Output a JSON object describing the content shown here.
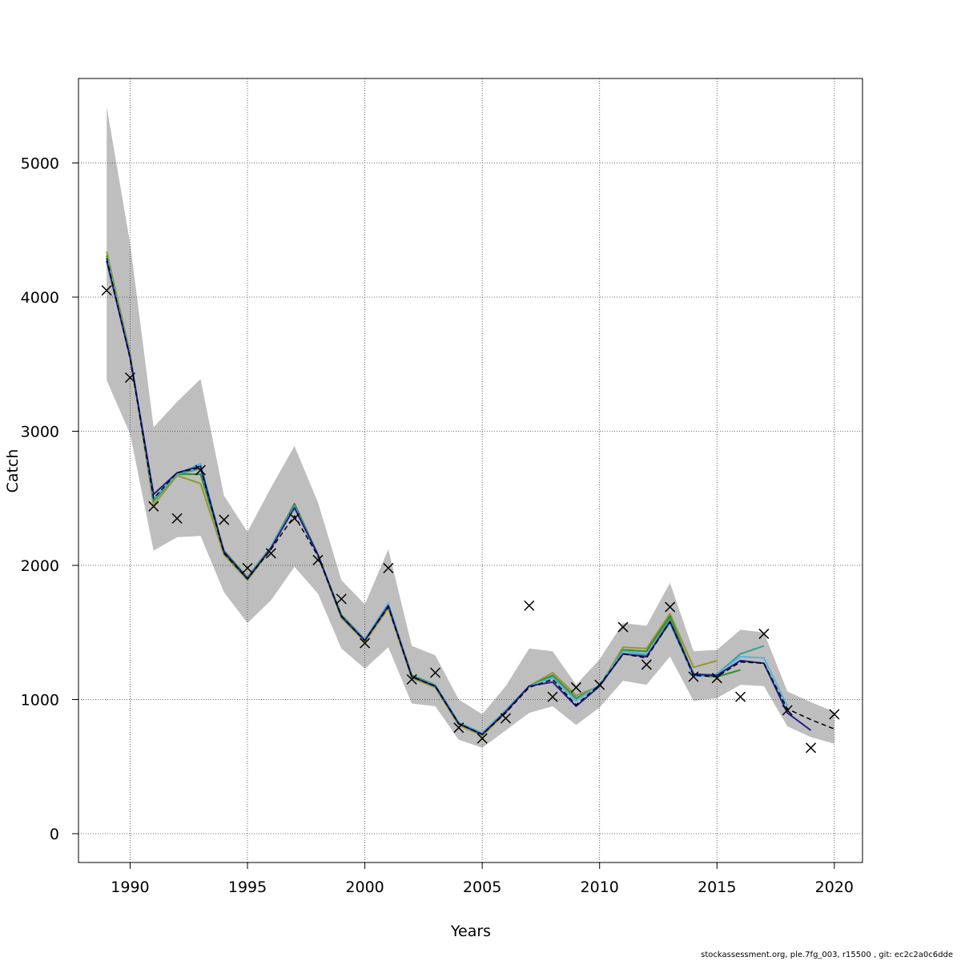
{
  "chart_data": {
    "type": "line",
    "title": "",
    "xlabel": "Years",
    "ylabel": "Catch",
    "xlim": [
      1987.8,
      2021.2
    ],
    "ylim": [
      -215,
      5630
    ],
    "x_ticks": [
      1990,
      1995,
      2000,
      2005,
      2010,
      2015,
      2020
    ],
    "y_ticks": [
      0,
      1000,
      2000,
      3000,
      4000,
      5000
    ],
    "grid": true,
    "legend": "none",
    "confidence_band": {
      "color": "#bebebe",
      "x": [
        1989,
        1990,
        1991,
        1992,
        1993,
        1994,
        1995,
        1996,
        1997,
        1998,
        1999,
        2000,
        2001,
        2002,
        2003,
        2004,
        2005,
        2006,
        2007,
        2008,
        2009,
        2010,
        2011,
        2012,
        2013,
        2014,
        2015,
        2016,
        2017,
        2018,
        2019,
        2020
      ],
      "upper": [
        5420,
        4400,
        3030,
        3220,
        3390,
        2520,
        2250,
        2580,
        2890,
        2470,
        1890,
        1710,
        2120,
        1400,
        1330,
        1000,
        890,
        1100,
        1380,
        1360,
        1110,
        1300,
        1570,
        1550,
        1870,
        1360,
        1370,
        1520,
        1500,
        1060,
        980,
        910
      ],
      "lower": [
        3380,
        2980,
        2110,
        2210,
        2220,
        1800,
        1570,
        1740,
        1990,
        1790,
        1380,
        1230,
        1390,
        970,
        950,
        700,
        640,
        770,
        900,
        950,
        810,
        940,
        1140,
        1110,
        1320,
        990,
        1010,
        1110,
        1100,
        800,
        720,
        670
      ]
    },
    "series": [
      {
        "color": "#000000",
        "dashed": true,
        "x": [
          1989,
          1990,
          1991,
          1992,
          1993,
          1994,
          1995,
          1996,
          1997,
          1998,
          1999,
          2000,
          2001,
          2002,
          2003,
          2004,
          2005,
          2006,
          2007,
          2008,
          2009,
          2010,
          2011,
          2012,
          2013,
          2014,
          2015,
          2016,
          2017,
          2018,
          2019,
          2020
        ],
        "values": [
          4290,
          3540,
          2500,
          2690,
          2730,
          2090,
          1900,
          2120,
          2370,
          2070,
          1620,
          1440,
          1690,
          1170,
          1100,
          820,
          740,
          900,
          1090,
          1150,
          960,
          1110,
          1340,
          1310,
          1580,
          1180,
          1170,
          1280,
          1270,
          930,
          850,
          780
        ]
      },
      {
        "color": "#1e1e8c",
        "x": [
          1989,
          1990,
          1991,
          1992,
          1993,
          1994,
          1995,
          1996,
          1997,
          1998,
          1999,
          2000,
          2001,
          2002,
          2003,
          2004,
          2005,
          2006,
          2007,
          2008,
          2009,
          2010,
          2011,
          2012,
          2013,
          2014,
          2015,
          2016,
          2017,
          2018,
          2019
        ],
        "values": [
          4270,
          3550,
          2530,
          2690,
          2740,
          2100,
          1900,
          2130,
          2430,
          2080,
          1620,
          1440,
          1700,
          1170,
          1100,
          820,
          740,
          910,
          1100,
          1130,
          950,
          1100,
          1340,
          1320,
          1580,
          1190,
          1180,
          1290,
          1270,
          900,
          770
        ]
      },
      {
        "color": "#5ab4dc",
        "x": [
          1989,
          1990,
          1991,
          1992,
          1993,
          1994,
          1995,
          1996,
          1997,
          1998,
          1999,
          2000,
          2001,
          2002,
          2003,
          2004,
          2005,
          2006,
          2007,
          2008,
          2009,
          2010,
          2011,
          2012,
          2013,
          2014,
          2015,
          2016,
          2017,
          2018
        ],
        "values": [
          4300,
          3560,
          2500,
          2680,
          2760,
          2100,
          1900,
          2140,
          2440,
          2070,
          1620,
          1450,
          1720,
          1170,
          1110,
          830,
          750,
          920,
          1100,
          1160,
          990,
          1110,
          1360,
          1340,
          1570,
          1170,
          1190,
          1320,
          1310,
          950
        ]
      },
      {
        "color": "#3ca096",
        "x": [
          1989,
          1990,
          1991,
          1992,
          1993,
          1994,
          1995,
          1996,
          1997,
          1998,
          1999,
          2000,
          2001,
          2002,
          2003,
          2004,
          2005,
          2006,
          2007,
          2008,
          2009,
          2010,
          2011,
          2012,
          2013,
          2014,
          2015,
          2016,
          2017
        ],
        "values": [
          4300,
          3560,
          2490,
          2680,
          2720,
          2100,
          1900,
          2130,
          2440,
          2080,
          1620,
          1440,
          1700,
          1170,
          1100,
          820,
          740,
          910,
          1100,
          1170,
          1000,
          1110,
          1360,
          1330,
          1600,
          1170,
          1190,
          1340,
          1400
        ]
      },
      {
        "color": "#2d8c2d",
        "x": [
          1989,
          1990,
          1991,
          1992,
          1993,
          1994,
          1995,
          1996,
          1997,
          1998,
          1999,
          2000,
          2001,
          2002,
          2003,
          2004,
          2005,
          2006,
          2007,
          2008,
          2009,
          2010,
          2011,
          2012,
          2013,
          2014,
          2015,
          2016
        ],
        "values": [
          4310,
          3560,
          2480,
          2680,
          2680,
          2110,
          1910,
          2140,
          2460,
          2080,
          1630,
          1450,
          1700,
          1180,
          1110,
          830,
          750,
          920,
          1100,
          1180,
          1010,
          1100,
          1370,
          1360,
          1620,
          1180,
          1170,
          1220
        ]
      },
      {
        "color": "#96962d",
        "x": [
          1989,
          1990,
          1991,
          1992,
          1993,
          1994,
          1995,
          1996,
          1997,
          1998,
          1999,
          2000,
          2001,
          2002,
          2003,
          2004,
          2005,
          2006,
          2007,
          2008,
          2009,
          2010,
          2011,
          2012,
          2013,
          2014,
          2015
        ],
        "values": [
          4340,
          3580,
          2450,
          2670,
          2610,
          2080,
          1890,
          2120,
          2450,
          2070,
          1610,
          1430,
          1680,
          1160,
          1090,
          810,
          730,
          900,
          1100,
          1200,
          1030,
          1100,
          1390,
          1380,
          1640,
          1240,
          1290
        ]
      }
    ],
    "observations": {
      "marker": "x",
      "x": [
        1989,
        1990,
        1991,
        1992,
        1993,
        1994,
        1995,
        1996,
        1997,
        1998,
        1999,
        2000,
        2001,
        2002,
        2003,
        2004,
        2005,
        2006,
        2007,
        2008,
        2009,
        2010,
        2011,
        2012,
        2013,
        2014,
        2015,
        2016,
        2017,
        2018,
        2019,
        2020
      ],
      "values": [
        4050,
        3400,
        2440,
        2350,
        2710,
        2340,
        1980,
        2090,
        2350,
        2040,
        1750,
        1420,
        1980,
        1150,
        1200,
        790,
        710,
        860,
        1700,
        1020,
        1090,
        1110,
        1540,
        1260,
        1690,
        1170,
        1160,
        1020,
        1490,
        920,
        640,
        890
      ]
    }
  },
  "footer": {
    "text": "stockassessment.org, ple.7fg_003, r15500 , git: ec2c2a0c6dde"
  }
}
